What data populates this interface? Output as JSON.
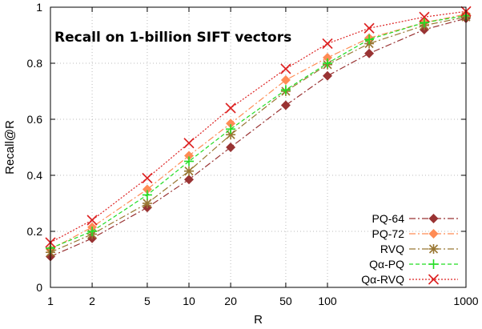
{
  "chart_data": {
    "type": "line",
    "title": "Recall on 1-billion SIFT vectors",
    "xlabel": "R",
    "ylabel": "Recall@R",
    "x_scale": "log",
    "xlim": [
      1,
      1000
    ],
    "ylim": [
      0,
      1
    ],
    "x_ticks": [
      1,
      2,
      5,
      10,
      20,
      50,
      100,
      1000
    ],
    "x_tick_labels": [
      "1",
      "2",
      "5",
      "10",
      "20",
      "50",
      "100",
      "1000"
    ],
    "y_ticks": [
      0,
      0.2,
      0.4,
      0.6,
      0.8,
      1
    ],
    "y_tick_labels": [
      "0",
      "0.2",
      "0.4",
      "0.6",
      "0.8",
      "1"
    ],
    "grid": true,
    "legend_position": "bottom-right",
    "x": [
      1,
      2,
      5,
      10,
      20,
      50,
      100,
      200,
      500,
      1000
    ],
    "series": [
      {
        "name": "PQ-64",
        "color": "#993333",
        "marker": "diamond",
        "line": "dash-dot",
        "values": [
          0.11,
          0.175,
          0.285,
          0.385,
          0.5,
          0.65,
          0.755,
          0.835,
          0.92,
          0.96
        ]
      },
      {
        "name": "PQ-72",
        "color": "#ff8c55",
        "marker": "diamond",
        "line": "dash-dot",
        "values": [
          0.135,
          0.215,
          0.35,
          0.47,
          0.585,
          0.74,
          0.82,
          0.89,
          0.945,
          0.975
        ]
      },
      {
        "name": "RVQ",
        "color": "#997733",
        "marker": "asterisk",
        "line": "dash-dot",
        "values": [
          0.125,
          0.19,
          0.3,
          0.415,
          0.545,
          0.7,
          0.795,
          0.87,
          0.935,
          0.965
        ]
      },
      {
        "name": "Qα-PQ",
        "color": "#22dd22",
        "marker": "plus",
        "line": "dashed",
        "values": [
          0.14,
          0.2,
          0.33,
          0.45,
          0.565,
          0.705,
          0.8,
          0.885,
          0.945,
          0.97
        ]
      },
      {
        "name": "Qα-RVQ",
        "color": "#dd2222",
        "marker": "cross",
        "line": "dotted",
        "values": [
          0.16,
          0.24,
          0.39,
          0.515,
          0.64,
          0.78,
          0.87,
          0.925,
          0.965,
          0.985
        ]
      }
    ]
  }
}
